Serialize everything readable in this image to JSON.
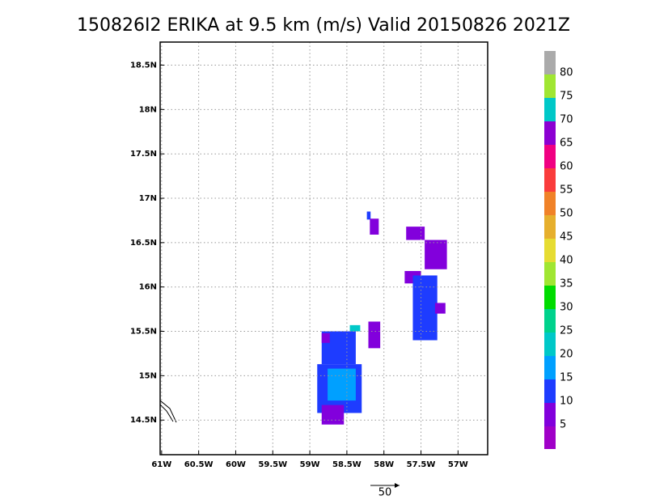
{
  "chart_data": {
    "type": "cellmap",
    "title": "150826I2 ERIKA at 9.5 km (m/s) Valid 20150826 2021Z",
    "xlim": [
      -61.02,
      -56.6
    ],
    "ylim": [
      14.11,
      18.76
    ],
    "xticks": [
      {
        "value": -61,
        "label": "61W"
      },
      {
        "value": -60.5,
        "label": "60.5W"
      },
      {
        "value": -60,
        "label": "60W"
      },
      {
        "value": -59.5,
        "label": "59.5W"
      },
      {
        "value": -59,
        "label": "59W"
      },
      {
        "value": -58.5,
        "label": "58.5W"
      },
      {
        "value": -58,
        "label": "58W"
      },
      {
        "value": -57.5,
        "label": "57.5W"
      },
      {
        "value": -57,
        "label": "57W"
      }
    ],
    "yticks": [
      {
        "value": 14.5,
        "label": "14.5N"
      },
      {
        "value": 15,
        "label": "15N"
      },
      {
        "value": 15.5,
        "label": "15.5N"
      },
      {
        "value": 16,
        "label": "16N"
      },
      {
        "value": 16.5,
        "label": "16.5N"
      },
      {
        "value": 17,
        "label": "17N"
      },
      {
        "value": 17.5,
        "label": "17.5N"
      },
      {
        "value": 18,
        "label": "18N"
      },
      {
        "value": 18.5,
        "label": "18.5N"
      }
    ],
    "grid": true,
    "levels": [
      5,
      10,
      15,
      20,
      25,
      30,
      35,
      40,
      45,
      50,
      55,
      60,
      65,
      70,
      75,
      80
    ],
    "colors": [
      "#a000c8",
      "#8200dc",
      "#1e3cff",
      "#00a0ff",
      "#00c8c8",
      "#00d28c",
      "#00dc00",
      "#a0e632",
      "#e6dc32",
      "#e6af2d",
      "#f08228",
      "#fa3c3c",
      "#f00082",
      "#8c00d2",
      "#00c8c8",
      "#a0e632",
      "#aaaaaa"
    ],
    "cells": [
      {
        "x": [
          -58.84,
          -58.38
        ],
        "y": [
          15.13,
          15.5
        ],
        "value": 12
      },
      {
        "x": [
          -58.9,
          -58.3
        ],
        "y": [
          14.58,
          15.13
        ],
        "value": 12
      },
      {
        "x": [
          -58.76,
          -58.38
        ],
        "y": [
          14.72,
          15.08
        ],
        "value": 17
      },
      {
        "x": [
          -58.84,
          -58.54
        ],
        "y": [
          14.45,
          14.67
        ],
        "value": 7
      },
      {
        "x": [
          -58.84,
          -58.73
        ],
        "y": [
          15.37,
          15.48
        ],
        "value": 7
      },
      {
        "x": [
          -58.21,
          -58.05
        ],
        "y": [
          15.31,
          15.61
        ],
        "value": 7
      },
      {
        "x": [
          -58.46,
          -58.32
        ],
        "y": [
          15.5,
          15.57
        ],
        "value": 22
      },
      {
        "x": [
          -57.7,
          -57.45
        ],
        "y": [
          16.53,
          16.68
        ],
        "value": 7
      },
      {
        "x": [
          -57.45,
          -57.15
        ],
        "y": [
          16.2,
          16.53
        ],
        "value": 7
      },
      {
        "x": [
          -57.72,
          -57.5
        ],
        "y": [
          16.04,
          16.18
        ],
        "value": 7
      },
      {
        "x": [
          -57.61,
          -57.28
        ],
        "y": [
          15.4,
          16.13
        ],
        "value": 12
      },
      {
        "x": [
          -57.31,
          -57.17
        ],
        "y": [
          15.7,
          15.82
        ],
        "value": 7
      },
      {
        "x": [
          -58.23,
          -58.18
        ],
        "y": [
          16.76,
          16.85
        ],
        "value": 12
      },
      {
        "x": [
          -58.19,
          -58.07
        ],
        "y": [
          16.59,
          16.77
        ],
        "value": 7
      }
    ],
    "reference_vector": 50
  }
}
